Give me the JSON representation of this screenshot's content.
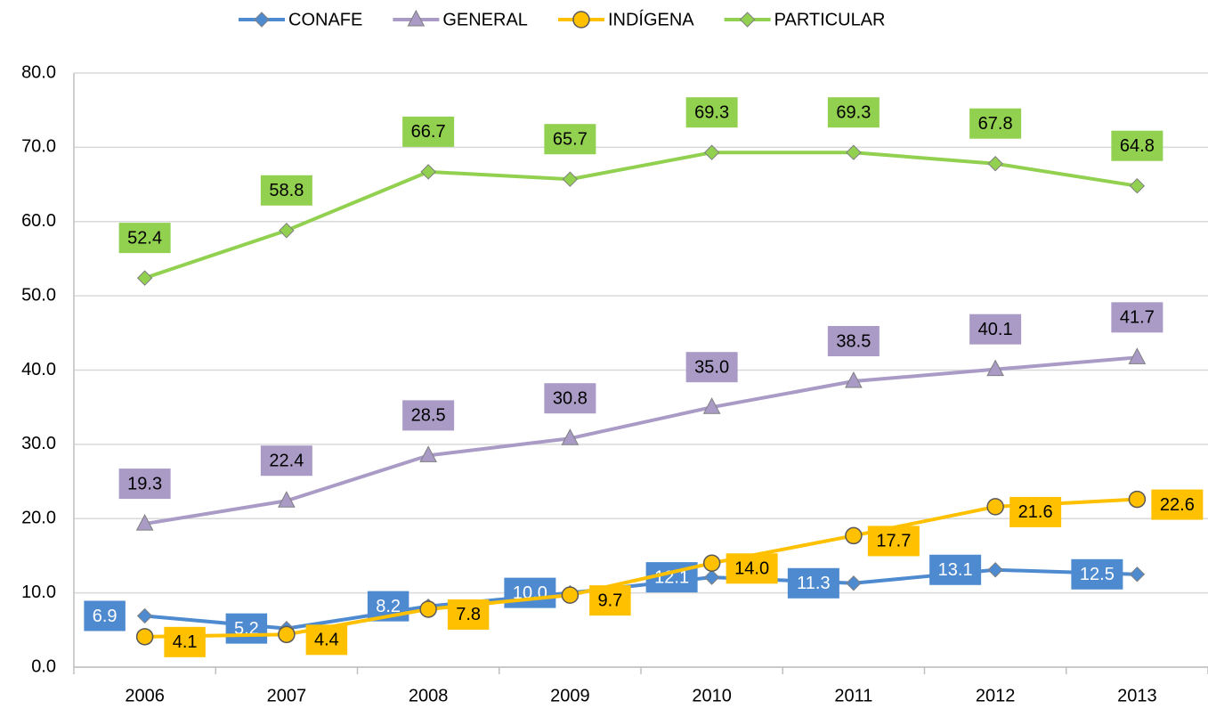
{
  "chart_data": {
    "type": "line",
    "categories": [
      "2006",
      "2007",
      "2008",
      "2009",
      "2010",
      "2011",
      "2012",
      "2013"
    ],
    "series": [
      {
        "name": "CONAFE",
        "color": "#4e8ad0",
        "marker": "diamond",
        "label_text_color": "#ffffff",
        "values": [
          6.9,
          5.2,
          8.2,
          10.0,
          12.1,
          11.3,
          13.1,
          12.5
        ],
        "value_labels": [
          "6.9",
          "5.2",
          "8.2",
          "10.0",
          "12.1",
          "11.3",
          "13.1",
          "12.5"
        ]
      },
      {
        "name": "GENERAL",
        "color": "#a99bc6",
        "marker": "triangle",
        "label_text_color": "#000000",
        "values": [
          19.3,
          22.4,
          28.5,
          30.8,
          35.0,
          38.5,
          40.1,
          41.7
        ],
        "value_labels": [
          "19.3",
          "22.4",
          "28.5",
          "30.8",
          "35.0",
          "38.5",
          "40.1",
          "41.7"
        ]
      },
      {
        "name": "INDÍGENA",
        "color": "#ffc000",
        "marker": "circle",
        "label_text_color": "#000000",
        "values": [
          4.1,
          4.4,
          7.8,
          9.7,
          14.0,
          17.7,
          21.6,
          22.6
        ],
        "value_labels": [
          "4.1",
          "4.4",
          "7.8",
          "9.7",
          "14.0",
          "17.7",
          "21.6",
          "22.6"
        ]
      },
      {
        "name": "PARTICULAR",
        "color": "#92d050",
        "marker": "diamond",
        "label_text_color": "#000000",
        "values": [
          52.4,
          58.8,
          66.7,
          65.7,
          69.3,
          69.3,
          67.8,
          64.8
        ],
        "value_labels": [
          "52.4",
          "58.8",
          "66.7",
          "65.7",
          "69.3",
          "69.3",
          "67.8",
          "64.8"
        ]
      }
    ],
    "ylim": [
      0,
      80
    ],
    "yticks": [
      {
        "value": 0,
        "label": "0.0"
      },
      {
        "value": 10,
        "label": "10.0"
      },
      {
        "value": 20,
        "label": "20.0"
      },
      {
        "value": 30,
        "label": "30.0"
      },
      {
        "value": 40,
        "label": "40.0"
      },
      {
        "value": 50,
        "label": "50.0"
      },
      {
        "value": 60,
        "label": "60.0"
      },
      {
        "value": 70,
        "label": "70.0"
      },
      {
        "value": 80,
        "label": "80.0"
      }
    ],
    "grid": true,
    "legend": "top"
  }
}
